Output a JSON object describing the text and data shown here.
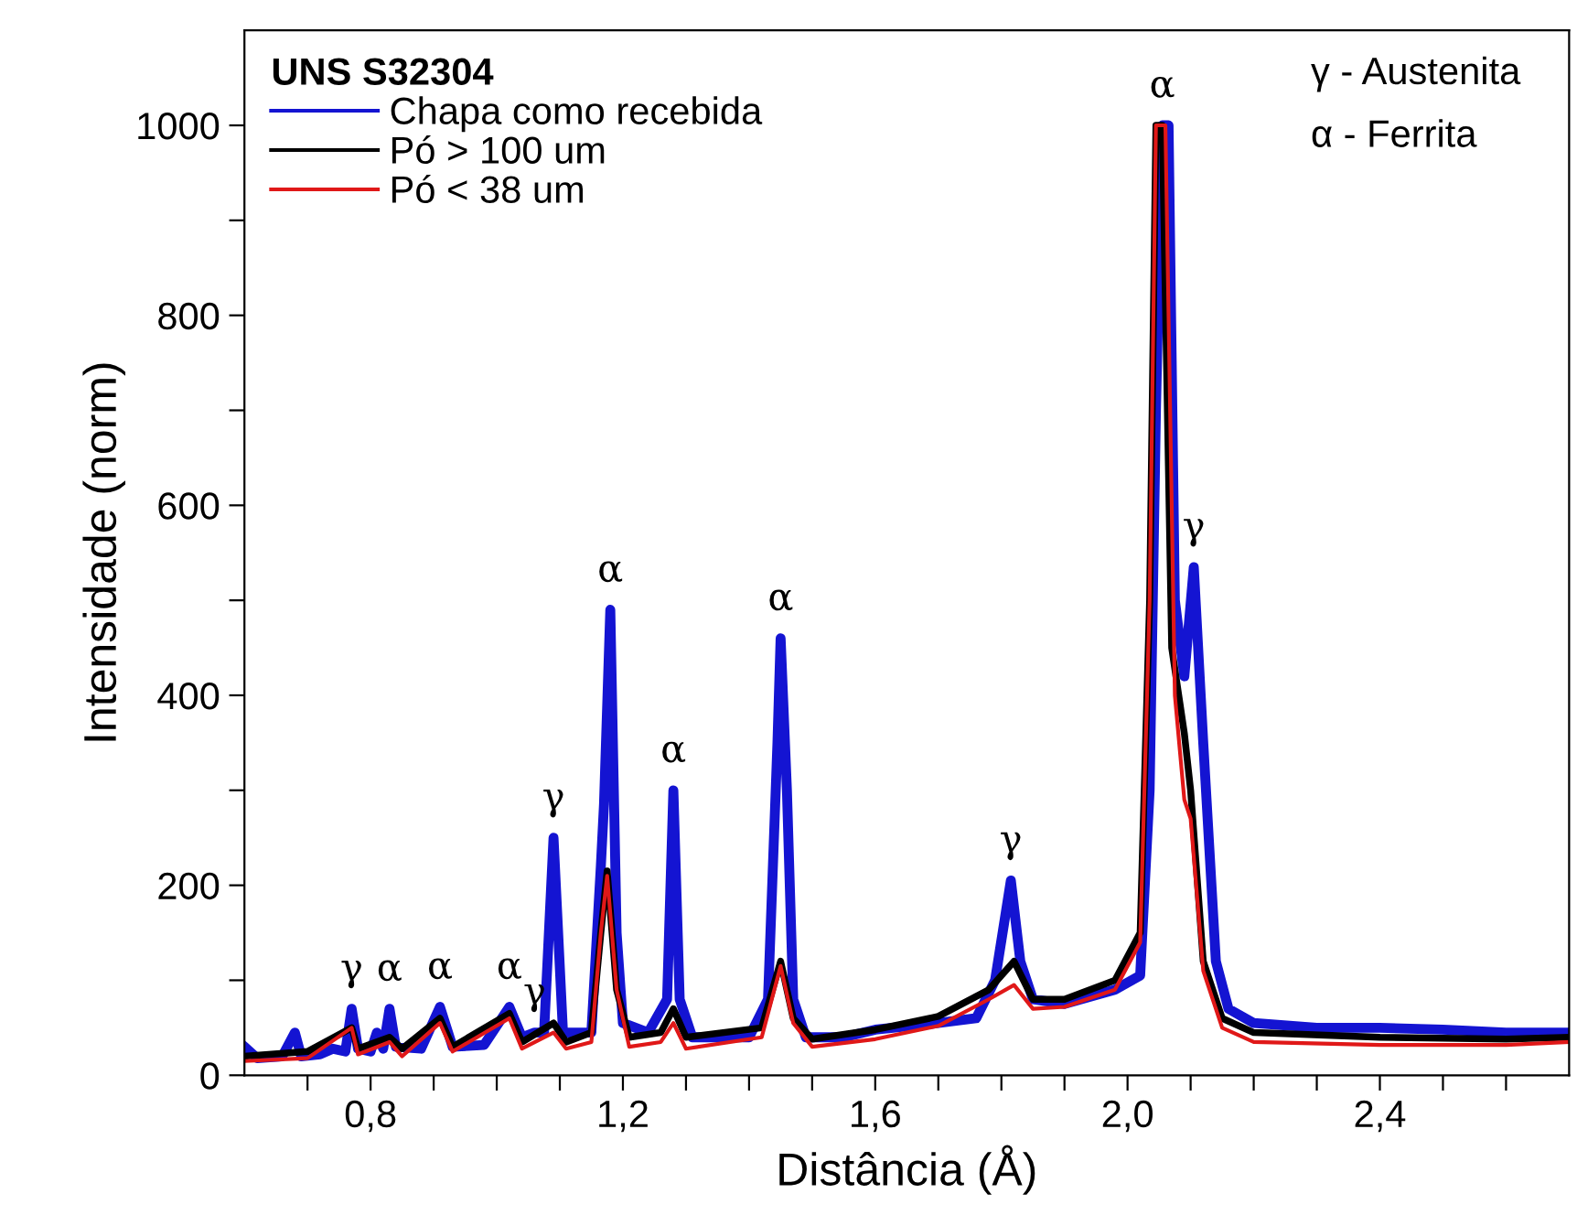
{
  "chart_data": {
    "type": "line",
    "xlabel": "Distância (Å)",
    "ylabel": "Intensidade (norm)",
    "legend_title": "UNS S32304",
    "legend": "top left",
    "grid": false,
    "xlim": [
      0.6,
      2.7
    ],
    "ylim": [
      0,
      1100
    ],
    "xticks": [
      {
        "value": 0.7,
        "label": null
      },
      {
        "value": 0.8,
        "label": "0,8"
      },
      {
        "value": 0.9,
        "label": null
      },
      {
        "value": 1.0,
        "label": null
      },
      {
        "value": 1.1,
        "label": null
      },
      {
        "value": 1.2,
        "label": "1,2"
      },
      {
        "value": 1.3,
        "label": null
      },
      {
        "value": 1.4,
        "label": null
      },
      {
        "value": 1.5,
        "label": null
      },
      {
        "value": 1.6,
        "label": "1,6"
      },
      {
        "value": 1.7,
        "label": null
      },
      {
        "value": 1.8,
        "label": null
      },
      {
        "value": 1.9,
        "label": null
      },
      {
        "value": 2.0,
        "label": "2,0"
      },
      {
        "value": 2.1,
        "label": null
      },
      {
        "value": 2.2,
        "label": null
      },
      {
        "value": 2.3,
        "label": null
      },
      {
        "value": 2.4,
        "label": "2,4"
      },
      {
        "value": 2.5,
        "label": null
      },
      {
        "value": 2.6,
        "label": null
      }
    ],
    "yticks": [
      0,
      {
        "value": 100,
        "label": null
      },
      200,
      {
        "value": 300,
        "label": null
      },
      400,
      {
        "value": 500,
        "label": null
      },
      600,
      {
        "value": 700,
        "label": null
      },
      800,
      {
        "value": 900,
        "label": null
      },
      1000
    ],
    "series": [
      {
        "name": "Chapa como recebida",
        "color": "#1414d2",
        "x": [
          0.6,
          0.62,
          0.66,
          0.68,
          0.69,
          0.72,
          0.74,
          0.76,
          0.77,
          0.78,
          0.8,
          0.81,
          0.82,
          0.83,
          0.84,
          0.88,
          0.91,
          0.93,
          0.98,
          1.02,
          1.04,
          1.06,
          1.075,
          1.09,
          1.105,
          1.15,
          1.165,
          1.17,
          1.18,
          1.19,
          1.2,
          1.24,
          1.27,
          1.28,
          1.29,
          1.31,
          1.4,
          1.43,
          1.445,
          1.45,
          1.46,
          1.47,
          1.49,
          1.55,
          1.6,
          1.7,
          1.76,
          1.79,
          1.815,
          1.83,
          1.85,
          1.9,
          1.98,
          2.02,
          2.035,
          2.045,
          2.055,
          2.065,
          2.075,
          2.09,
          2.105,
          2.12,
          2.14,
          2.16,
          2.2,
          2.3,
          2.4,
          2.5,
          2.6,
          2.7
        ],
        "values": [
          30,
          18,
          20,
          45,
          20,
          22,
          28,
          25,
          70,
          28,
          25,
          45,
          28,
          70,
          30,
          28,
          72,
          30,
          32,
          72,
          40,
          45,
          45,
          250,
          45,
          45,
          220,
          285,
          490,
          150,
          55,
          45,
          80,
          300,
          80,
          40,
          40,
          80,
          350,
          460,
          300,
          80,
          40,
          40,
          48,
          55,
          60,
          100,
          205,
          120,
          80,
          75,
          90,
          105,
          300,
          700,
          1000,
          1000,
          500,
          420,
          535,
          350,
          120,
          70,
          55,
          50,
          50,
          48,
          45,
          45
        ]
      },
      {
        "name": "Pó > 100 um",
        "color": "#000000",
        "x": [
          0.6,
          0.7,
          0.77,
          0.78,
          0.83,
          0.85,
          0.91,
          0.93,
          1.02,
          1.04,
          1.09,
          1.11,
          1.15,
          1.165,
          1.175,
          1.19,
          1.21,
          1.26,
          1.28,
          1.3,
          1.42,
          1.45,
          1.47,
          1.5,
          1.6,
          1.7,
          1.78,
          1.82,
          1.85,
          1.9,
          1.98,
          2.02,
          2.035,
          2.045,
          2.055,
          2.07,
          2.09,
          2.1,
          2.12,
          2.15,
          2.2,
          2.4,
          2.6,
          2.7
        ],
        "values": [
          20,
          25,
          50,
          28,
          40,
          28,
          60,
          30,
          65,
          35,
          55,
          35,
          45,
          150,
          215,
          90,
          40,
          45,
          70,
          40,
          50,
          120,
          60,
          38,
          48,
          62,
          90,
          120,
          80,
          80,
          100,
          150,
          500,
          1000,
          1000,
          450,
          360,
          300,
          120,
          60,
          45,
          40,
          38,
          40
        ]
      },
      {
        "name": "Pó < 38 um",
        "color": "#e01818",
        "x": [
          0.6,
          0.7,
          0.77,
          0.78,
          0.83,
          0.85,
          0.91,
          0.93,
          1.02,
          1.04,
          1.09,
          1.11,
          1.15,
          1.165,
          1.175,
          1.19,
          1.21,
          1.26,
          1.28,
          1.3,
          1.42,
          1.45,
          1.47,
          1.5,
          1.6,
          1.7,
          1.78,
          1.82,
          1.85,
          1.9,
          1.98,
          2.02,
          2.035,
          2.045,
          2.06,
          2.075,
          2.09,
          2.1,
          2.12,
          2.15,
          2.2,
          2.4,
          2.6,
          2.7
        ],
        "values": [
          15,
          18,
          50,
          22,
          35,
          20,
          55,
          25,
          60,
          28,
          45,
          28,
          35,
          150,
          210,
          90,
          30,
          35,
          55,
          28,
          40,
          115,
          55,
          30,
          38,
          52,
          80,
          95,
          70,
          72,
          90,
          140,
          500,
          1000,
          1000,
          400,
          290,
          270,
          110,
          50,
          35,
          32,
          32,
          35
        ]
      }
    ],
    "annotations": [
      "γ - Austenita",
      "α - Ferrita",
      {
        "text": "γ",
        "x": 0.77,
        "y": 70
      },
      {
        "text": "α",
        "x": 0.83,
        "y": 70
      },
      {
        "text": "α",
        "x": 0.91,
        "y": 72
      },
      {
        "text": "α",
        "x": 1.02,
        "y": 72
      },
      {
        "text": "γ",
        "x": 1.06,
        "y": 45
      },
      {
        "text": "γ",
        "x": 1.09,
        "y": 250
      },
      {
        "text": "α",
        "x": 1.18,
        "y": 490
      },
      {
        "text": "α",
        "x": 1.28,
        "y": 300
      },
      {
        "text": "α",
        "x": 1.45,
        "y": 460
      },
      {
        "text": "γ",
        "x": 1.815,
        "y": 205
      },
      {
        "text": "α",
        "x": 2.055,
        "y": 1000
      },
      {
        "text": "γ",
        "x": 2.105,
        "y": 535
      }
    ]
  }
}
